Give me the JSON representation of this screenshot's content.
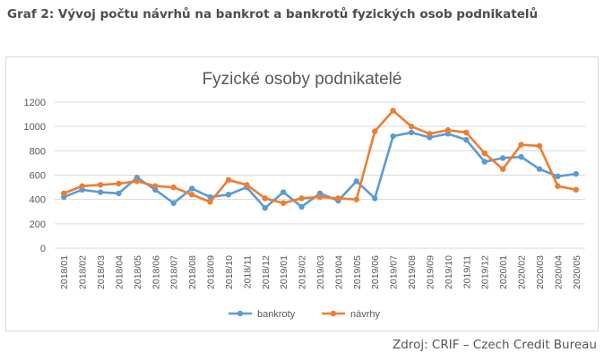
{
  "page": {
    "heading": "Graf 2: Vývoj počtu návrhů na bankrot a bankrotů fyzických osob podnikatelů",
    "source": "Zdroj: CRIF – Czech Credit Bureau"
  },
  "colors": {
    "bankroty": "#5b9bd5",
    "navrhy": "#ed7d31",
    "grid": "#d9d9d9",
    "text": "#595959"
  },
  "chart_data": {
    "type": "line",
    "title": "Fyzické osoby podnikatelé",
    "xlabel": "",
    "ylabel": "",
    "ylim": [
      0,
      1200
    ],
    "yticks": [
      0,
      200,
      400,
      600,
      800,
      1000,
      1200
    ],
    "grid": true,
    "legend": "bottom",
    "categories": [
      "2018/01",
      "2018/02",
      "2018/03",
      "2018/04",
      "2018/05",
      "2018/06",
      "2018/07",
      "2018/08",
      "2018/09",
      "2018/10",
      "2018/11",
      "2018/12",
      "2019/01",
      "2019/02",
      "2019/03",
      "2019/04",
      "2019/05",
      "2019/06",
      "2019/07",
      "2019/08",
      "2019/09",
      "2019/10",
      "2019/11",
      "2019/12",
      "2020/01",
      "2020/02",
      "2020/03",
      "2020/04",
      "2020/05"
    ],
    "series": [
      {
        "name": "bankroty",
        "values": [
          420,
          480,
          460,
          450,
          580,
          480,
          370,
          490,
          420,
          440,
          500,
          330,
          460,
          340,
          450,
          390,
          550,
          410,
          920,
          950,
          910,
          940,
          890,
          710,
          740,
          750,
          650,
          590,
          610
        ]
      },
      {
        "name": "návrhy",
        "values": [
          450,
          510,
          520,
          530,
          550,
          510,
          500,
          440,
          380,
          560,
          520,
          410,
          370,
          410,
          420,
          410,
          400,
          960,
          1130,
          1000,
          940,
          970,
          950,
          780,
          650,
          850,
          840,
          510,
          480
        ]
      }
    ]
  }
}
